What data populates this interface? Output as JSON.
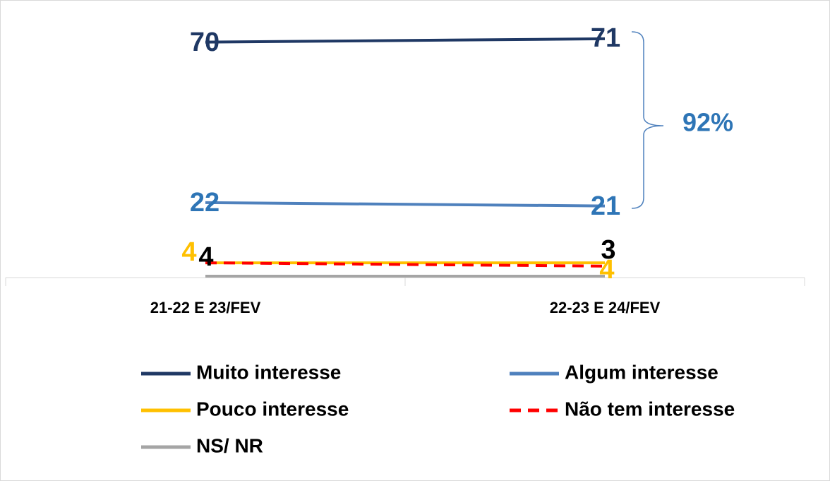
{
  "chart_data": {
    "type": "line",
    "categories": [
      "21-22 E 23/FEV",
      "22-23 E 24/FEV"
    ],
    "series": [
      {
        "name": "Muito interesse",
        "color": "#1f3864",
        "label_color": "#1f3864",
        "values": [
          70,
          71
        ]
      },
      {
        "name": "Algum interesse",
        "color": "#4f81bd",
        "label_color": "#2e75b6",
        "values": [
          22,
          21
        ]
      },
      {
        "name": "Pouco interesse",
        "color": "#ffc000",
        "label_color": "#ffc000",
        "values": [
          4,
          4
        ]
      },
      {
        "name": "Não tem interesse",
        "color": "#ff0000",
        "label_color": "#000000",
        "dashed": true,
        "values": [
          4,
          3
        ]
      },
      {
        "name": "NS/ NR",
        "color": "#a5a5a5",
        "values": [
          0,
          0
        ],
        "show_labels": false
      }
    ],
    "ylim": [
      0,
      75
    ],
    "annotation": "92%"
  }
}
